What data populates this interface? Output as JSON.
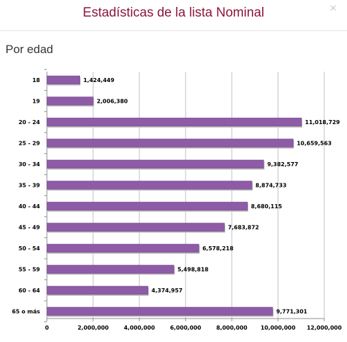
{
  "modal": {
    "title": "Estadísticas de la lista Nominal",
    "close_label": "×"
  },
  "section": {
    "title": "Por edad"
  },
  "colors": {
    "bar": "#8e5ba6",
    "title": "#8a1538"
  },
  "chart_data": {
    "type": "bar",
    "orientation": "horizontal",
    "categories": [
      "18",
      "19",
      "20 - 24",
      "25 - 29",
      "30 - 34",
      "35 - 39",
      "40 - 44",
      "45 - 49",
      "50 - 54",
      "55 - 59",
      "60 - 64",
      "65 o más"
    ],
    "values": [
      1424449,
      2006380,
      11018729,
      10659563,
      9382577,
      8874733,
      8680115,
      7683872,
      6578218,
      5498818,
      4374957,
      9771301
    ],
    "value_labels": [
      "1,424,449",
      "2,006,380",
      "11,018,729",
      "10,659,563",
      "9,382,577",
      "8,874,733",
      "8,680,115",
      "7,683,872",
      "6,578,218",
      "5,498,818",
      "4,374,957",
      "9,771,301"
    ],
    "x_ticks": [
      0,
      2000000,
      4000000,
      6000000,
      8000000,
      10000000,
      12000000
    ],
    "x_tick_labels": [
      "0",
      "2,000,000",
      "4,000,000",
      "6,000,000",
      "8,000,000",
      "10,000,000",
      "12,000,000"
    ],
    "xlim": [
      0,
      12000000
    ],
    "grid": true,
    "legend": "none"
  }
}
